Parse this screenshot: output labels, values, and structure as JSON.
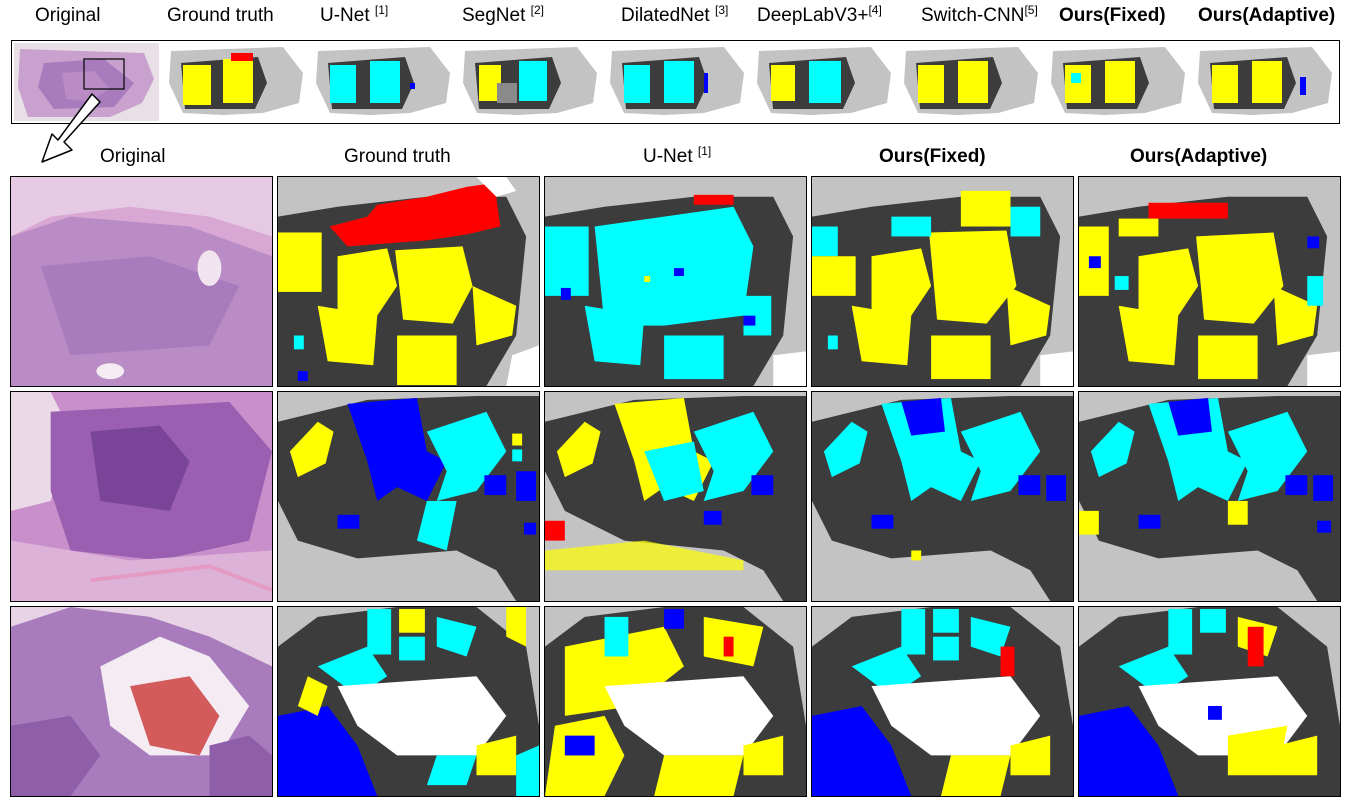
{
  "top_headers": [
    {
      "main": "Original",
      "ref": "",
      "bold": false
    },
    {
      "main": "Ground truth",
      "ref": "",
      "bold": false
    },
    {
      "main": "U-Net ",
      "ref": "[1]",
      "bold": false
    },
    {
      "main": "SegNet ",
      "ref": "[2]",
      "bold": false
    },
    {
      "main": "DilatedNet ",
      "ref": "[3]",
      "bold": false
    },
    {
      "main": "DeepLabV3+",
      "ref": "[4]",
      "bold": false
    },
    {
      "main": "Switch-CNN",
      "ref": "[5]",
      "bold": false
    },
    {
      "main": "Ours(Fixed)",
      "ref": "",
      "bold": true
    },
    {
      "main": "Ours(Adaptive)",
      "ref": "",
      "bold": true
    }
  ],
  "grid_headers": [
    {
      "main": "Original",
      "ref": "",
      "bold": false
    },
    {
      "main": "Ground truth",
      "ref": "",
      "bold": false
    },
    {
      "main": "U-Net ",
      "ref": "[1]",
      "bold": false
    },
    {
      "main": "Ours(Fixed)",
      "ref": "",
      "bold": true
    },
    {
      "main": "Ours(Adaptive)",
      "ref": "",
      "bold": true
    }
  ],
  "colors": {
    "background_gray": "#c3c3c3",
    "stroma_dark": "#3c3c3c",
    "class_yellow": "#ffff00",
    "class_cyan": "#00ffff",
    "class_blue": "#0000ff",
    "class_red": "#ff0000",
    "white": "#ffffff",
    "he_purple": "#b47fc0",
    "he_pink": "#d8a7d4"
  }
}
